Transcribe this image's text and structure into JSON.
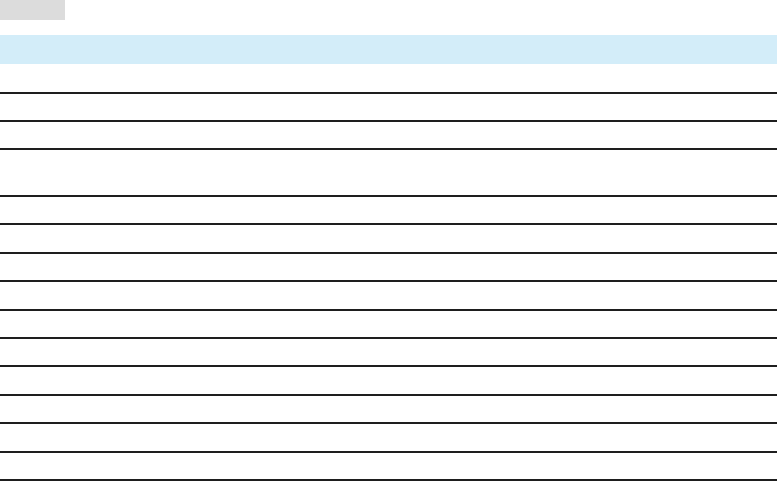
{
  "colors": {
    "placeholder": "#dcdcdc",
    "header_background": "#d3edf9",
    "row_divider": "#1e1e1e"
  },
  "table": {
    "header": [],
    "rows": [
      [],
      [],
      [],
      [],
      [],
      [],
      [],
      [],
      [],
      [],
      [],
      [],
      [],
      []
    ]
  }
}
